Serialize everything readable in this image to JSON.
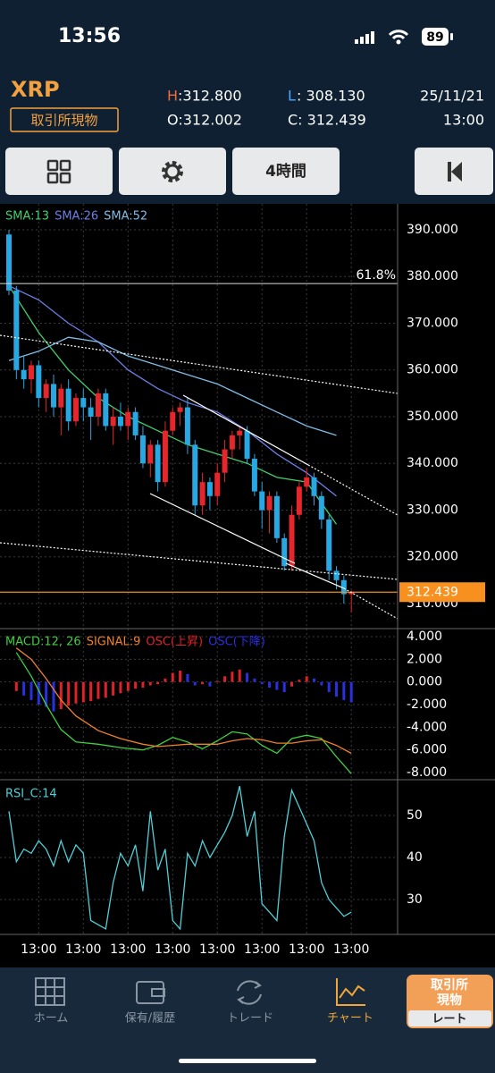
{
  "status_bar": {
    "time": "13:56",
    "battery": "89"
  },
  "header": {
    "symbol": "XRP",
    "market": "取引所現物",
    "h_key": "H",
    "h_val": ":312.800",
    "l_key": "L",
    "l_val": ": 308.130",
    "o_text": "O:312.002",
    "c_text": "C: 312.439",
    "date": "25/11/21",
    "time": "13:00"
  },
  "toolbar": {
    "interval": "4時間"
  },
  "chart_data": [
    {
      "type": "candlestick",
      "up_color": "#e5262c",
      "down_color": "#27a8e2",
      "open": [
        389,
        377,
        360,
        358,
        361,
        354,
        357,
        352,
        356,
        349,
        354,
        352,
        350,
        355,
        348,
        350,
        348,
        351,
        346,
        340,
        344,
        336,
        347,
        351,
        352,
        344,
        331,
        336,
        333,
        338,
        343,
        346,
        347,
        341,
        334,
        330,
        333,
        324,
        318,
        329,
        335,
        337,
        333,
        328,
        317,
        315,
        312.002
      ],
      "high": [
        390,
        378,
        363,
        362,
        362,
        358,
        359,
        357,
        358,
        355,
        356,
        354,
        356,
        356,
        352,
        353,
        352,
        352,
        348,
        345,
        345,
        349,
        352,
        353,
        354,
        345,
        338,
        337,
        340,
        345,
        347,
        348,
        348,
        342,
        336,
        334,
        334,
        325,
        331,
        336,
        339,
        338,
        334,
        329,
        318,
        316,
        312.8
      ],
      "low": [
        376,
        358,
        356,
        355,
        352,
        351,
        350,
        346,
        347,
        348,
        349,
        345,
        348,
        347,
        344,
        347,
        345,
        345,
        339,
        337,
        334,
        335,
        346,
        348,
        342,
        329,
        329,
        330,
        331,
        336,
        341,
        343,
        340,
        333,
        326,
        325,
        323,
        317,
        317,
        328,
        334,
        331,
        326,
        315,
        313,
        310,
        308.13
      ],
      "close": [
        377,
        360,
        358,
        361,
        354,
        357,
        352,
        356,
        349,
        354,
        352,
        350,
        355,
        348,
        350,
        348,
        351,
        346,
        340,
        344,
        336,
        347,
        351,
        352,
        344,
        331,
        336,
        333,
        338,
        343,
        346,
        347,
        341,
        334,
        330,
        333,
        324,
        318,
        329,
        335,
        337,
        333,
        328,
        317,
        315,
        312,
        312.439
      ],
      "series": [
        {
          "name": "SMA:13",
          "color": "#3ed070",
          "x": [
            0,
            4,
            8,
            12,
            16,
            20,
            24,
            28,
            32,
            36,
            40,
            44
          ],
          "values": [
            378,
            368,
            360,
            354,
            350,
            347,
            344,
            342,
            340,
            337,
            336,
            327
          ]
        },
        {
          "name": "SMA:26",
          "color": "#6c7fe6",
          "x": [
            0,
            4,
            8,
            12,
            16,
            20,
            24,
            28,
            32,
            36,
            40,
            44
          ],
          "values": [
            378,
            375,
            370,
            366,
            360,
            356,
            353,
            351,
            347,
            342,
            338,
            333
          ]
        },
        {
          "name": "SMA:52",
          "color": "#7fbde8",
          "x": [
            0,
            4,
            8,
            12,
            16,
            20,
            24,
            28,
            32,
            36,
            40,
            44
          ],
          "values": [
            362,
            364,
            367,
            366,
            363,
            361,
            359,
            357,
            354,
            351,
            348,
            346
          ]
        }
      ],
      "fib": {
        "label": "61.8%",
        "value": 378.5
      },
      "last_price": {
        "value": 312.439,
        "label": "312.439"
      },
      "ylim": [
        304.64,
        395.55
      ],
      "yticks": [
        {
          "value": 390,
          "label": "390.000"
        },
        {
          "value": 380,
          "label": "380.000"
        },
        {
          "value": 370,
          "label": "370.000"
        },
        {
          "value": 360,
          "label": "360.000"
        },
        {
          "value": 350,
          "label": "350.000"
        },
        {
          "value": 340,
          "label": "340.000"
        },
        {
          "value": 330,
          "label": "330.000"
        },
        {
          "value": 320,
          "label": "320.000"
        },
        {
          "value": 310,
          "label": "310.000"
        }
      ],
      "grid": true
    },
    {
      "type": "macd",
      "series": [
        {
          "name": "MACD:12, 26",
          "color": "#3fcf3f",
          "x": [
            1,
            3,
            5,
            7,
            9,
            12,
            15,
            18,
            20,
            22,
            24,
            26,
            28,
            30,
            32,
            34,
            36,
            38,
            40,
            42,
            44,
            46
          ],
          "values": [
            2.6,
            0.5,
            -2.0,
            -4.2,
            -5.3,
            -5.5,
            -5.8,
            -6.0,
            -5.6,
            -4.9,
            -5.3,
            -5.9,
            -5.2,
            -4.4,
            -4.6,
            -5.6,
            -6.3,
            -5.0,
            -4.7,
            -5.0,
            -6.6,
            -8.1
          ]
        },
        {
          "name": "SIGNAL:9",
          "color": "#f0802a",
          "x": [
            1,
            3,
            5,
            7,
            9,
            12,
            15,
            18,
            20,
            22,
            24,
            26,
            28,
            30,
            32,
            34,
            36,
            38,
            40,
            42,
            44,
            46
          ],
          "values": [
            3.0,
            2.0,
            0.3,
            -1.6,
            -3.0,
            -4.3,
            -5.0,
            -5.5,
            -5.7,
            -5.6,
            -5.5,
            -5.5,
            -5.5,
            -5.2,
            -5.0,
            -5.1,
            -5.4,
            -5.4,
            -5.2,
            -5.1,
            -5.6,
            -6.3
          ]
        }
      ],
      "osc": {
        "up_name": "OSC(上昇)",
        "up_color": "#e0202a",
        "down_name": "OSC(下降)",
        "down_color": "#2a2fe0",
        "values": [
          null,
          -0.8,
          -1.2,
          -1.6,
          -2.0,
          -2.2,
          -2.6,
          -2.4,
          -2.1,
          -1.9,
          -1.8,
          -1.7,
          -1.5,
          -1.4,
          -1.2,
          -1.0,
          -0.8,
          -0.6,
          -0.5,
          -0.3,
          -0.2,
          0.3,
          0.8,
          1.0,
          0.7,
          -0.3,
          -0.2,
          -0.4,
          0.1,
          0.5,
          0.9,
          1.1,
          0.8,
          0.3,
          -0.2,
          -0.5,
          -0.7,
          -0.9,
          -0.4,
          0.2,
          0.5,
          0.3,
          -0.3,
          -0.9,
          -1.3,
          -1.6,
          -1.8
        ]
      },
      "ylim": [
        -8.63,
        4.71
      ],
      "yticks": [
        {
          "value": 4,
          "label": "4.000"
        },
        {
          "value": 2,
          "label": "2.000"
        },
        {
          "value": 0,
          "label": "0.000"
        },
        {
          "value": -2,
          "label": "-2.000"
        },
        {
          "value": -4,
          "label": "-4.000"
        },
        {
          "value": -6,
          "label": "-6.000"
        },
        {
          "value": -8,
          "label": "-8.000"
        }
      ],
      "grid": true
    },
    {
      "type": "line",
      "categories": [
        null,
        null,
        null,
        null,
        "13:00",
        null,
        null,
        null,
        null,
        null,
        "13:00",
        null,
        null,
        null,
        null,
        null,
        "13:00",
        null,
        null,
        null,
        null,
        null,
        "13:00",
        null,
        null,
        null,
        null,
        null,
        "13:00",
        null,
        null,
        null,
        null,
        null,
        "13:00",
        null,
        null,
        null,
        null,
        null,
        "13:00",
        null,
        null,
        null,
        null,
        null,
        "13:00"
      ],
      "series": [
        {
          "name": "RSI_C:14",
          "color": "#4fd0d8",
          "values": [
            51,
            39,
            42,
            41,
            44,
            42,
            38,
            44,
            39,
            43,
            41,
            25,
            24,
            23,
            34,
            41,
            38,
            43,
            32,
            51,
            37,
            42,
            25,
            23,
            41,
            38,
            44,
            40,
            43,
            46,
            50,
            57,
            45,
            51,
            29,
            27,
            25,
            45,
            56,
            52,
            48,
            44,
            34,
            30,
            28,
            26,
            27
          ]
        }
      ],
      "ylim": [
        21.7,
        58.5
      ],
      "yticks": [
        50,
        40,
        30
      ],
      "grid": true
    }
  ],
  "nav": {
    "items": [
      "ホーム",
      "保有/履歴",
      "トレード",
      "チャート"
    ],
    "market_lines": [
      "取引所",
      "現物"
    ],
    "rate": "レート"
  }
}
